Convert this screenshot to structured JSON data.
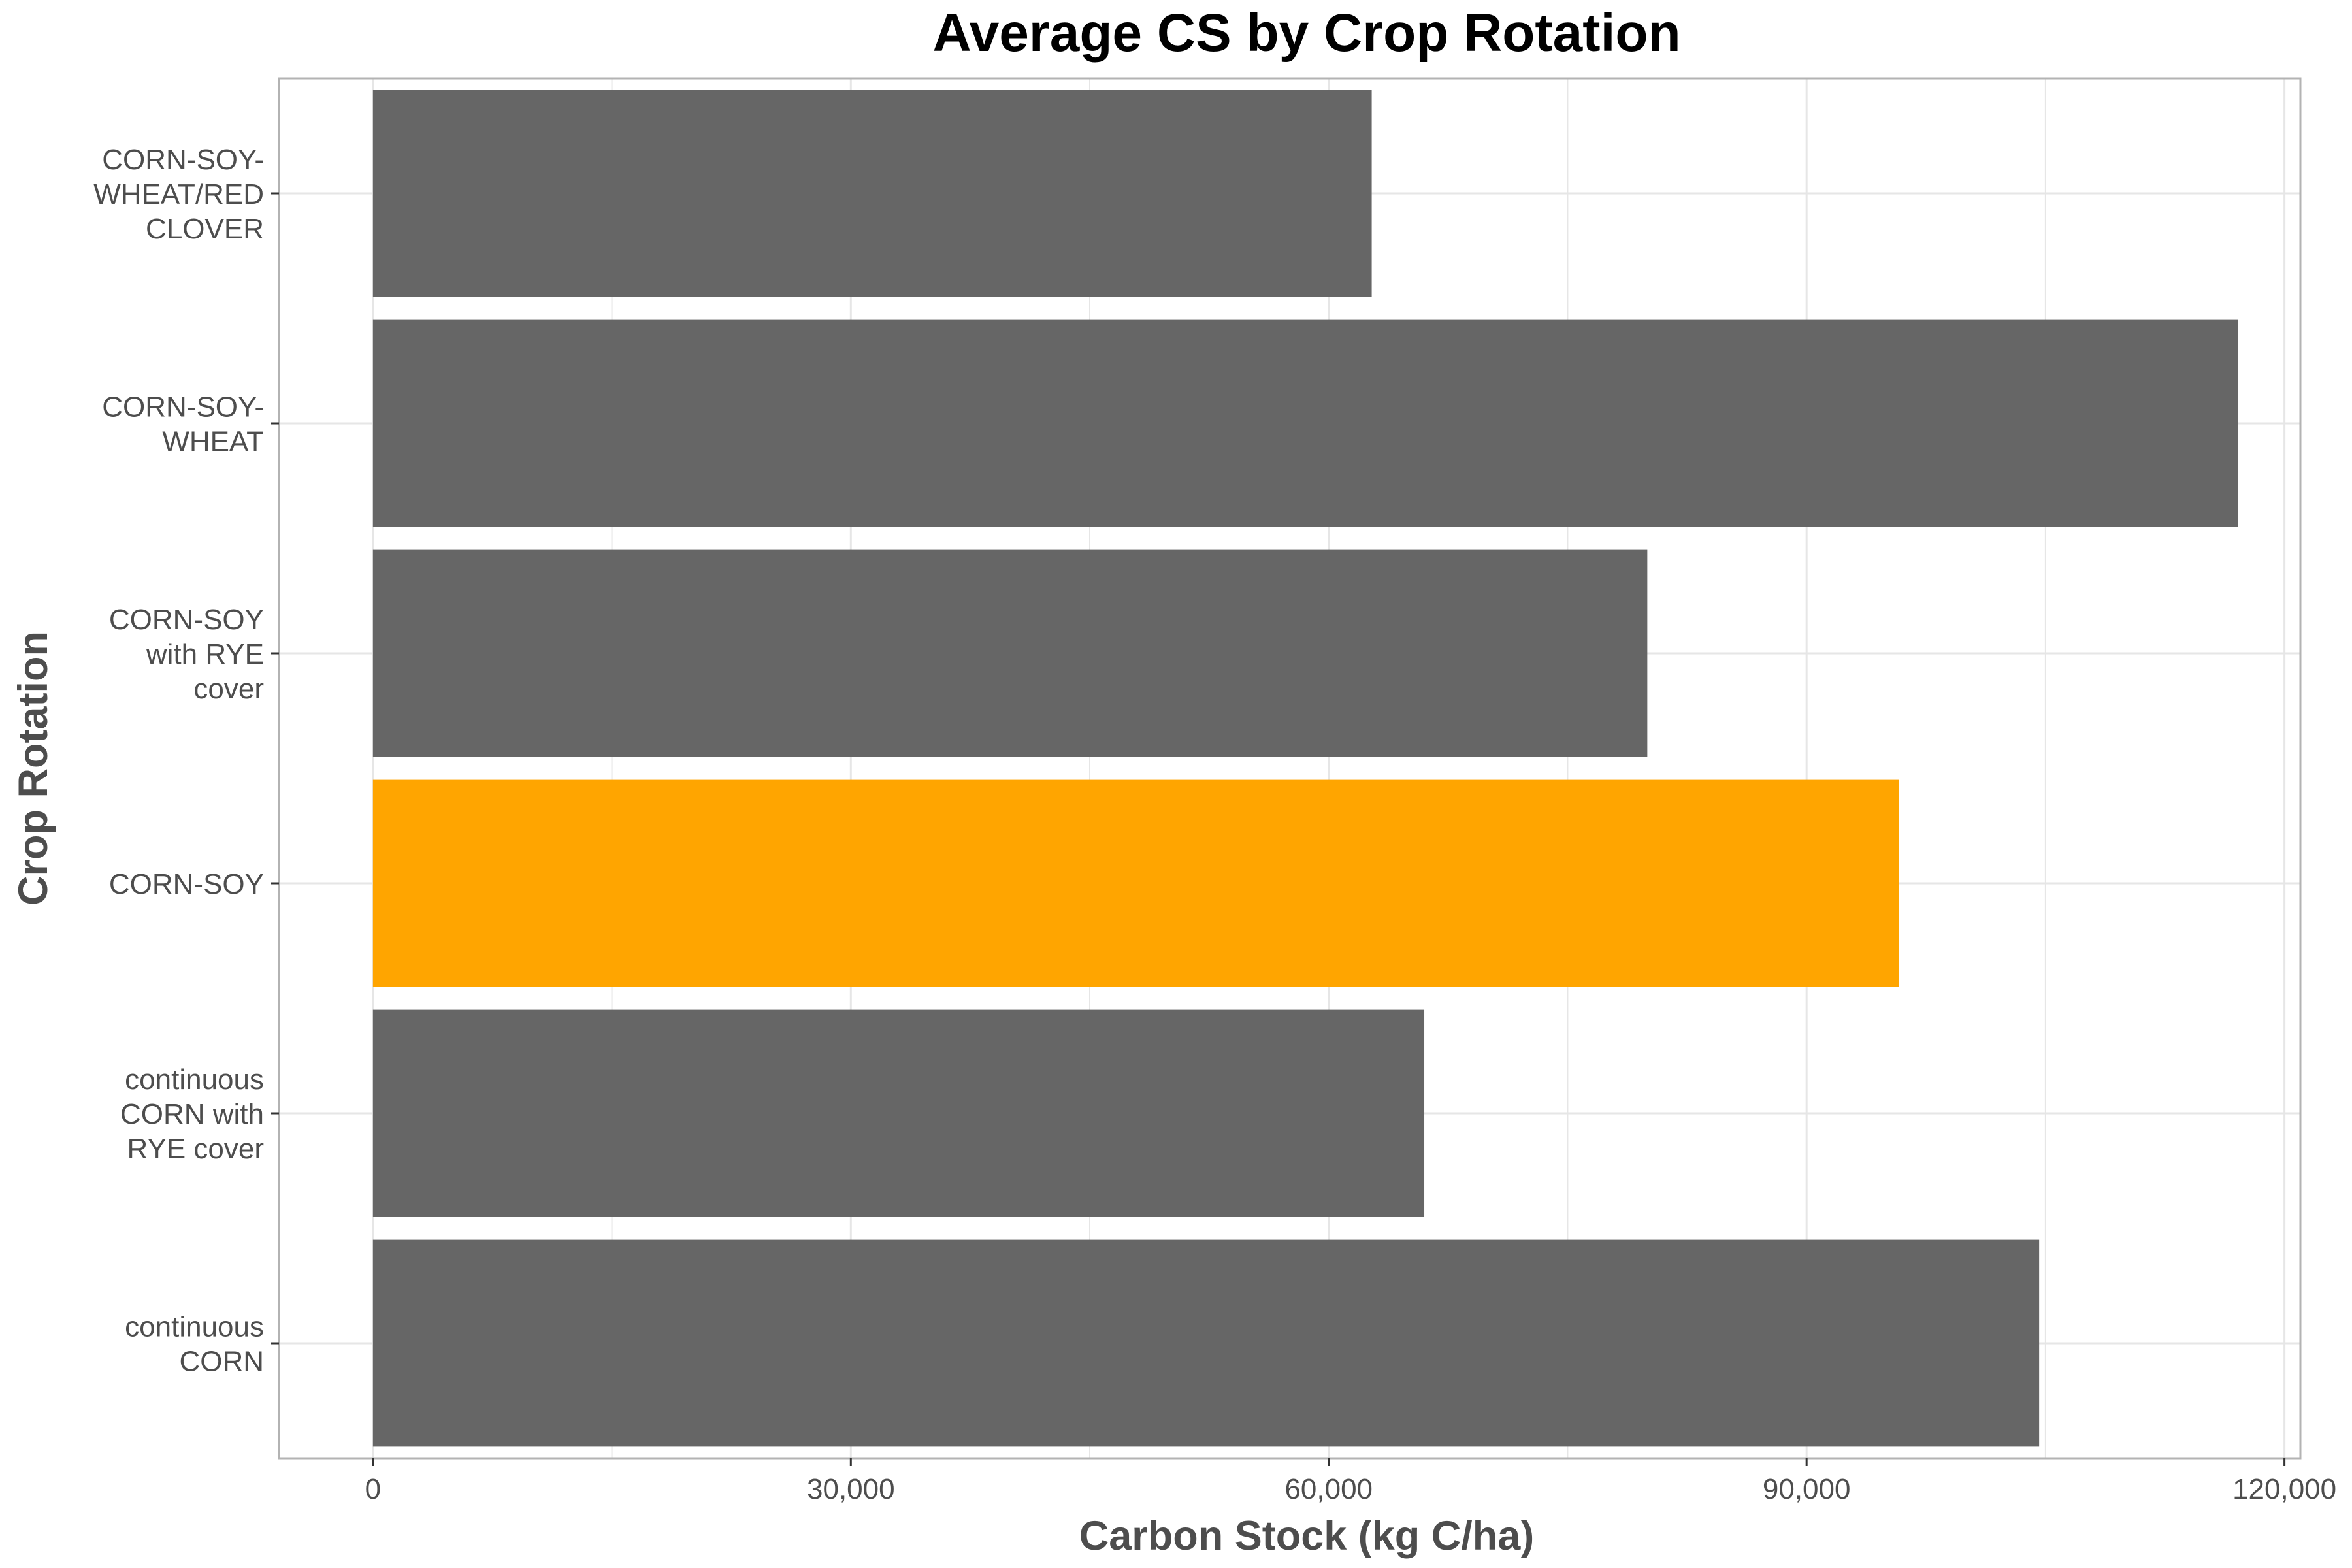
{
  "chart_data": {
    "type": "bar",
    "orientation": "horizontal",
    "title": "Average CS by Crop Rotation",
    "xlabel": "Carbon Stock (kg C/ha)",
    "ylabel": "Crop Rotation",
    "xlim": [
      -5900,
      121000
    ],
    "x_ticks": [
      0,
      30000,
      60000,
      90000,
      120000
    ],
    "x_tick_labels": [
      "0",
      "30,000",
      "60,000",
      "90,000",
      "120,000"
    ],
    "grid": true,
    "categories": [
      "CORN-SOY-WHEAT/RED CLOVER",
      "CORN-SOY-WHEAT",
      "CORN-SOY with RYE cover",
      "CORN-SOY",
      "continuous CORN with RYE cover",
      "continuous CORN"
    ],
    "category_label_lines": [
      [
        "CORN-SOY-",
        "WHEAT/RED",
        "CLOVER"
      ],
      [
        "CORN-SOY-",
        "WHEAT"
      ],
      [
        "CORN-SOY",
        "with RYE",
        "cover"
      ],
      [
        "CORN-SOY"
      ],
      [
        "continuous",
        "CORN with",
        "RYE cover"
      ],
      [
        "continuous",
        "CORN"
      ]
    ],
    "values": [
      62700,
      117100,
      80000,
      95800,
      66000,
      104600
    ],
    "highlight_index": 3,
    "colors": {
      "bar": "#666666",
      "highlight": "#FFA500",
      "grid": "#e6e6e6",
      "panel_border": "#b3b3b3"
    }
  }
}
